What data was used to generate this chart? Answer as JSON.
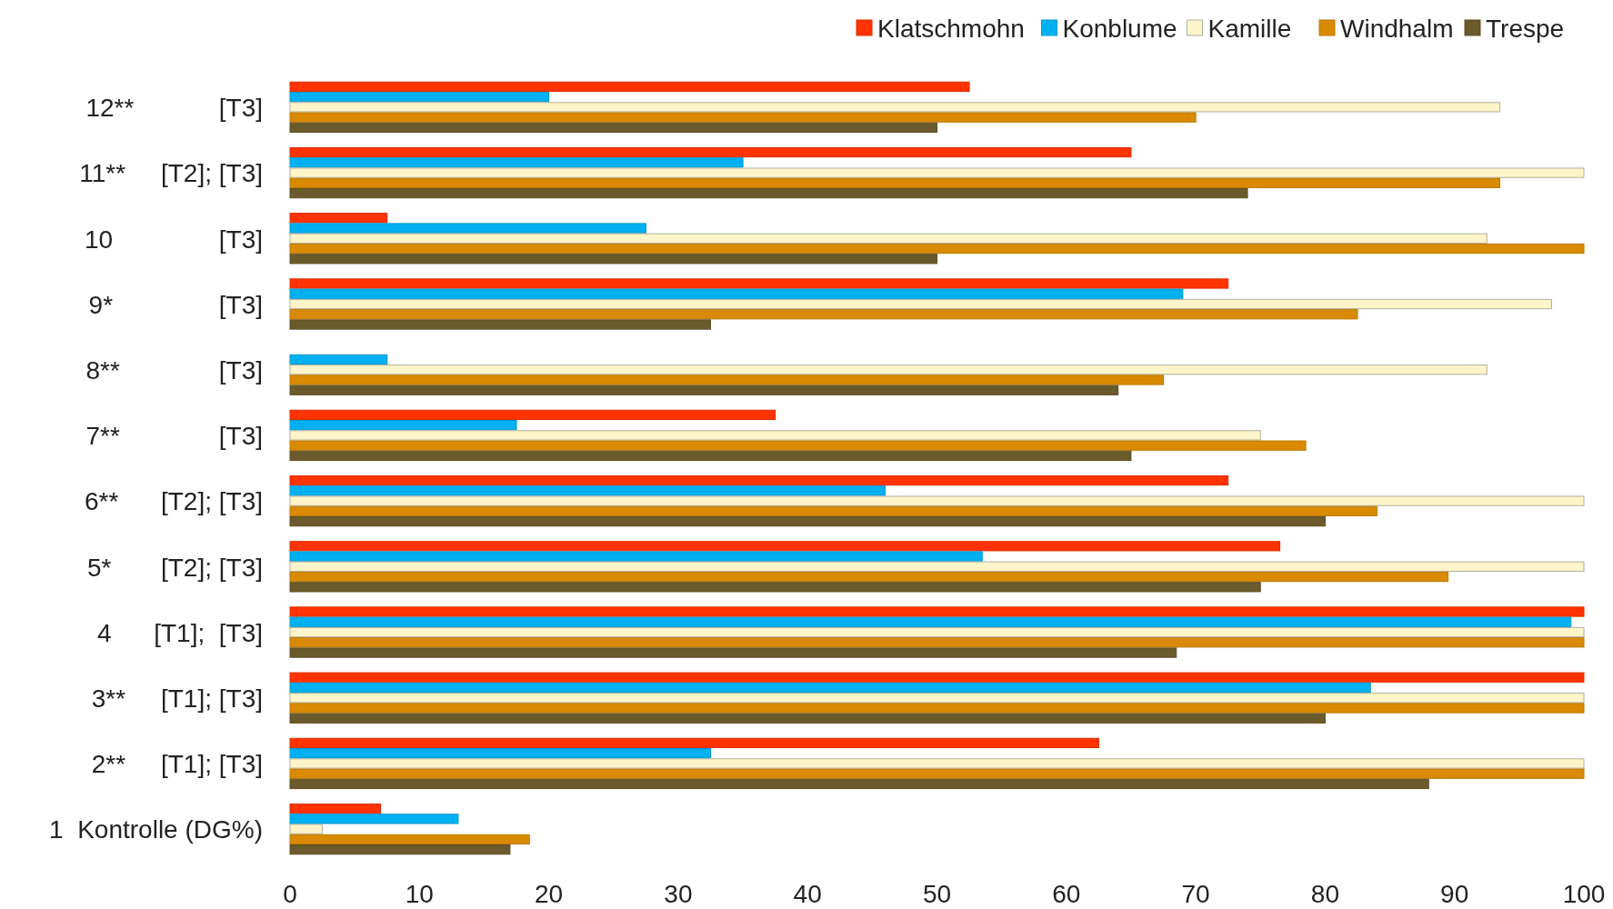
{
  "chart_data": {
    "type": "bar",
    "orientation": "horizontal",
    "categories": [
      "12**            [T3]",
      "11**     [T2]; [T3]",
      "10               [T3]",
      "9*               [T3]",
      "8**              [T3]",
      "7**              [T3]",
      "6**      [T2]; [T3]",
      "5*       [T2]; [T3]",
      "4      [T1];  [T3]",
      "3**     [T1]; [T3]",
      "2**     [T1]; [T3]",
      "1  Kontrolle (DG%)"
    ],
    "series": [
      {
        "name": "Klatschmohn",
        "color": "#ff3300",
        "values": [
          52.5,
          65,
          7.5,
          72.5,
          null,
          37.5,
          72.5,
          76.5,
          100,
          100,
          62.5,
          7
        ]
      },
      {
        "name": "Konblume",
        "color": "#00b0f0",
        "values": [
          20,
          35,
          27.5,
          69,
          7.5,
          17.5,
          46,
          53.5,
          99,
          83.5,
          32.5,
          13
        ]
      },
      {
        "name": "Kamille",
        "color": "#fdf5c9",
        "values": [
          93.5,
          100,
          92.5,
          97.5,
          92.5,
          75,
          100,
          100,
          100,
          100,
          100,
          2.5
        ]
      },
      {
        "name": "Windhalm",
        "color": "#d98a00",
        "values": [
          70,
          93.5,
          100,
          82.5,
          67.5,
          78.5,
          84,
          89.5,
          100,
          100,
          100,
          18.5
        ]
      },
      {
        "name": "Trespe",
        "color": "#6b5a2b",
        "values": [
          50,
          74,
          50,
          32.5,
          64,
          65,
          80,
          75,
          68.5,
          80,
          88,
          17
        ]
      }
    ],
    "xlim": [
      0,
      100
    ],
    "xticks": [
      0,
      10,
      20,
      30,
      40,
      50,
      60,
      70,
      80,
      90,
      100
    ],
    "legend": "top right",
    "grid": false
  }
}
